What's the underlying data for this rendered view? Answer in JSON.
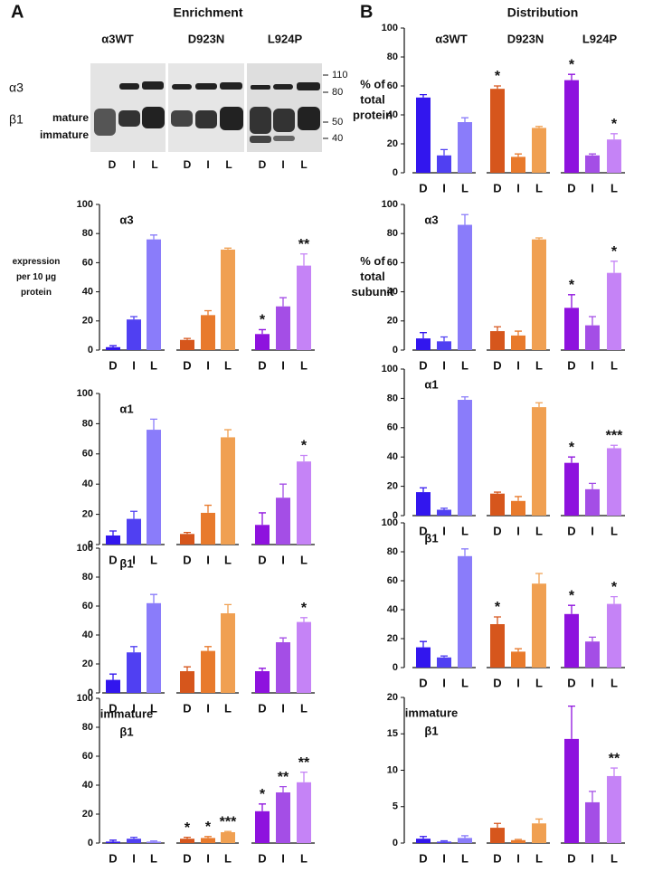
{
  "panels": [
    {
      "label": "A",
      "title": "Enrichment"
    },
    {
      "label": "B",
      "title": "Distribution"
    }
  ],
  "blot": {
    "group_labels": [
      "α3WT",
      "D923N",
      "L924P"
    ],
    "row_labels": [
      "α3",
      "β1"
    ],
    "band_labels": [
      "mature",
      "immature"
    ],
    "mw_markers": [
      110,
      80,
      50,
      40
    ],
    "lanes": [
      "D",
      "I",
      "L",
      "D",
      "I",
      "L",
      "D",
      "I",
      "L"
    ]
  },
  "chart_data": [
    {
      "type": "bar",
      "title_lines": [
        "α3"
      ],
      "ylabel_lines": [
        "expression",
        "per 10 µg",
        "protein"
      ],
      "categories": [
        "D",
        "I",
        "L",
        "D",
        "I",
        "L",
        "D",
        "I",
        "L"
      ],
      "values": [
        2,
        21,
        76,
        7,
        24,
        69,
        11,
        30,
        58
      ],
      "errors": [
        1,
        2,
        3,
        1,
        3,
        1,
        3,
        6,
        8
      ],
      "annotations": [
        null,
        null,
        null,
        null,
        null,
        null,
        "*",
        null,
        "**"
      ],
      "colors": [
        "#3216ee",
        "#5040f2",
        "#8a7cfa",
        "#d6561c",
        "#e87a2c",
        "#f0a052",
        "#8e12de",
        "#a44ee6",
        "#c583f6"
      ],
      "ylim": [
        0,
        100
      ],
      "yticks": [
        0,
        20,
        40,
        60,
        80,
        100
      ]
    },
    {
      "type": "bar",
      "title_lines": [
        "α1"
      ],
      "categories": [
        "D",
        "I",
        "L",
        "D",
        "I",
        "L",
        "D",
        "I",
        "L"
      ],
      "values": [
        6,
        17,
        76,
        7,
        21,
        71,
        13,
        31,
        55
      ],
      "errors": [
        3,
        5,
        7,
        1,
        5,
        5,
        8,
        9,
        4
      ],
      "annotations": [
        null,
        null,
        null,
        null,
        null,
        null,
        null,
        null,
        "*"
      ],
      "colors": [
        "#3216ee",
        "#5040f2",
        "#8a7cfa",
        "#d6561c",
        "#e87a2c",
        "#f0a052",
        "#8e12de",
        "#a44ee6",
        "#c583f6"
      ],
      "ylim": [
        0,
        100
      ],
      "yticks": [
        0,
        20,
        40,
        60,
        80,
        100
      ]
    },
    {
      "type": "bar",
      "title_lines": [
        "β1"
      ],
      "categories": [
        "D",
        "I",
        "L",
        "D",
        "I",
        "L",
        "D",
        "I",
        "L"
      ],
      "values": [
        9,
        28,
        62,
        15,
        29,
        55,
        15,
        35,
        49
      ],
      "errors": [
        4,
        4,
        6,
        3,
        3,
        6,
        2,
        3,
        3
      ],
      "annotations": [
        null,
        null,
        null,
        null,
        null,
        null,
        null,
        null,
        "*"
      ],
      "colors": [
        "#3216ee",
        "#5040f2",
        "#8a7cfa",
        "#d6561c",
        "#e87a2c",
        "#f0a052",
        "#8e12de",
        "#a44ee6",
        "#c583f6"
      ],
      "ylim": [
        0,
        100
      ],
      "yticks": [
        0,
        20,
        40,
        60,
        80,
        100
      ]
    },
    {
      "type": "bar",
      "title_lines": [
        "immature",
        "β1"
      ],
      "categories": [
        "D",
        "I",
        "L",
        "D",
        "I",
        "L",
        "D",
        "I",
        "L"
      ],
      "values": [
        1,
        3,
        1,
        3,
        3.5,
        7.5,
        22,
        35,
        42
      ],
      "errors": [
        1,
        1,
        0.5,
        1,
        1,
        0.5,
        5,
        4,
        7
      ],
      "annotations": [
        null,
        null,
        null,
        "*",
        "*",
        "***",
        "*",
        "**",
        "**"
      ],
      "colors": [
        "#3216ee",
        "#5040f2",
        "#8a7cfa",
        "#d6561c",
        "#e87a2c",
        "#f0a052",
        "#8e12de",
        "#a44ee6",
        "#c583f6"
      ],
      "ylim": [
        0,
        100
      ],
      "yticks": [
        0,
        20,
        40,
        60,
        80,
        100
      ]
    },
    {
      "type": "bar",
      "groups": [
        "α3WT",
        "D923N",
        "L924P"
      ],
      "ylabel_lines": [
        "% of",
        "total",
        "protein"
      ],
      "categories": [
        "D",
        "I",
        "L",
        "D",
        "I",
        "L",
        "D",
        "I",
        "L"
      ],
      "values": [
        52,
        12,
        35,
        58,
        11,
        31,
        64,
        12,
        23
      ],
      "errors": [
        2,
        4,
        3,
        2,
        2,
        1,
        4,
        1,
        4
      ],
      "annotations": [
        null,
        null,
        null,
        "*",
        null,
        null,
        "*",
        null,
        "*"
      ],
      "colors": [
        "#3216ee",
        "#5040f2",
        "#8a7cfa",
        "#d6561c",
        "#e87a2c",
        "#f0a052",
        "#8e12de",
        "#a44ee6",
        "#c583f6"
      ],
      "ylim": [
        0,
        100
      ],
      "yticks": [
        0,
        20,
        40,
        60,
        80,
        100
      ]
    },
    {
      "type": "bar",
      "title_lines": [
        "α3"
      ],
      "ylabel_lines": [
        "% of",
        "total",
        "subunit"
      ],
      "categories": [
        "D",
        "I",
        "L",
        "D",
        "I",
        "L",
        "D",
        "I",
        "L"
      ],
      "values": [
        8,
        6,
        86,
        13,
        10,
        76,
        29,
        17,
        53
      ],
      "errors": [
        4,
        3,
        7,
        3,
        3,
        1,
        9,
        6,
        8
      ],
      "annotations": [
        null,
        null,
        null,
        null,
        null,
        null,
        "*",
        null,
        "*"
      ],
      "colors": [
        "#3216ee",
        "#5040f2",
        "#8a7cfa",
        "#d6561c",
        "#e87a2c",
        "#f0a052",
        "#8e12de",
        "#a44ee6",
        "#c583f6"
      ],
      "ylim": [
        0,
        100
      ],
      "yticks": [
        0,
        20,
        40,
        60,
        80,
        100
      ]
    },
    {
      "type": "bar",
      "title_lines": [
        "α1"
      ],
      "categories": [
        "D",
        "I",
        "L",
        "D",
        "I",
        "L",
        "D",
        "I",
        "L"
      ],
      "values": [
        16,
        4,
        79,
        15,
        10,
        74,
        36,
        18,
        46
      ],
      "errors": [
        3,
        1,
        2,
        1,
        3,
        3,
        4,
        4,
        2
      ],
      "annotations": [
        null,
        null,
        null,
        null,
        null,
        null,
        "*",
        null,
        "***"
      ],
      "colors": [
        "#3216ee",
        "#5040f2",
        "#8a7cfa",
        "#d6561c",
        "#e87a2c",
        "#f0a052",
        "#8e12de",
        "#a44ee6",
        "#c583f6"
      ],
      "ylim": [
        0,
        100
      ],
      "yticks": [
        0,
        20,
        40,
        60,
        80,
        100
      ]
    },
    {
      "type": "bar",
      "title_lines": [
        "β1"
      ],
      "categories": [
        "D",
        "I",
        "L",
        "D",
        "I",
        "L",
        "D",
        "I",
        "L"
      ],
      "values": [
        14,
        7,
        77,
        30,
        11,
        58,
        37,
        18,
        44
      ],
      "errors": [
        4,
        1,
        5,
        5,
        2,
        7,
        6,
        3,
        5
      ],
      "annotations": [
        null,
        null,
        null,
        "*",
        null,
        null,
        "*",
        null,
        "*"
      ],
      "colors": [
        "#3216ee",
        "#5040f2",
        "#8a7cfa",
        "#d6561c",
        "#e87a2c",
        "#f0a052",
        "#8e12de",
        "#a44ee6",
        "#c583f6"
      ],
      "ylim": [
        0,
        100
      ],
      "yticks": [
        0,
        20,
        40,
        60,
        80,
        100
      ]
    },
    {
      "type": "bar",
      "title_lines": [
        "immature",
        "β1"
      ],
      "categories": [
        "D",
        "I",
        "L",
        "D",
        "I",
        "L",
        "D",
        "I",
        "L"
      ],
      "values": [
        0.6,
        0.2,
        0.7,
        2.1,
        0.4,
        2.7,
        14.3,
        5.6,
        9.2
      ],
      "errors": [
        0.3,
        0.1,
        0.3,
        0.6,
        0.1,
        0.6,
        4.5,
        1.5,
        1.1
      ],
      "annotations": [
        null,
        null,
        null,
        null,
        null,
        null,
        null,
        null,
        "**"
      ],
      "colors": [
        "#3216ee",
        "#5040f2",
        "#8a7cfa",
        "#d6561c",
        "#e87a2c",
        "#f0a052",
        "#8e12de",
        "#a44ee6",
        "#c583f6"
      ],
      "ylim": [
        0,
        20
      ],
      "yticks": [
        0,
        5,
        10,
        15,
        20
      ]
    }
  ]
}
